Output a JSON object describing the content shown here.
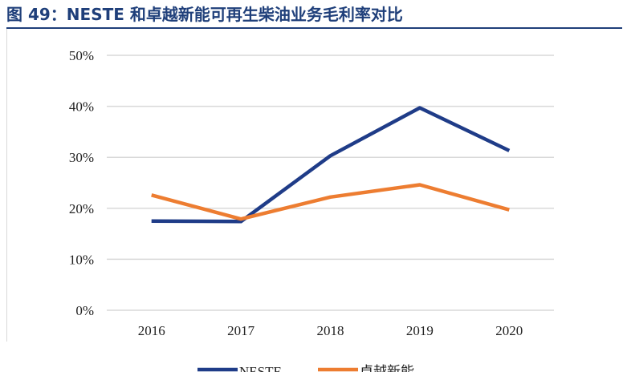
{
  "figure_title": "图 49：NESTE 和卓越新能可再生柴油业务毛利率对比",
  "colors": {
    "title": "#1f3f7a",
    "neste": "#1f3c88",
    "zhuoyue": "#ed7d31",
    "grid": "#d9d9d9"
  },
  "chart_data": {
    "type": "line",
    "title": "",
    "xlabel": "",
    "ylabel": "",
    "categories": [
      "2016",
      "2017",
      "2018",
      "2019",
      "2020"
    ],
    "ylim": [
      0,
      0.5
    ],
    "yticks": [
      0,
      0.1,
      0.2,
      0.3,
      0.4,
      0.5
    ],
    "ytick_labels": [
      "0%",
      "10%",
      "20%",
      "30%",
      "40%",
      "50%"
    ],
    "grid": true,
    "legend": "bottom-center",
    "series": [
      {
        "name": "NESTE",
        "values": [
          0.175,
          0.174,
          0.303,
          0.397,
          0.313
        ],
        "color": "#1f3c88"
      },
      {
        "name": "卓越新能",
        "values": [
          0.226,
          0.179,
          0.222,
          0.246,
          0.197
        ],
        "color": "#ed7d31"
      }
    ]
  }
}
